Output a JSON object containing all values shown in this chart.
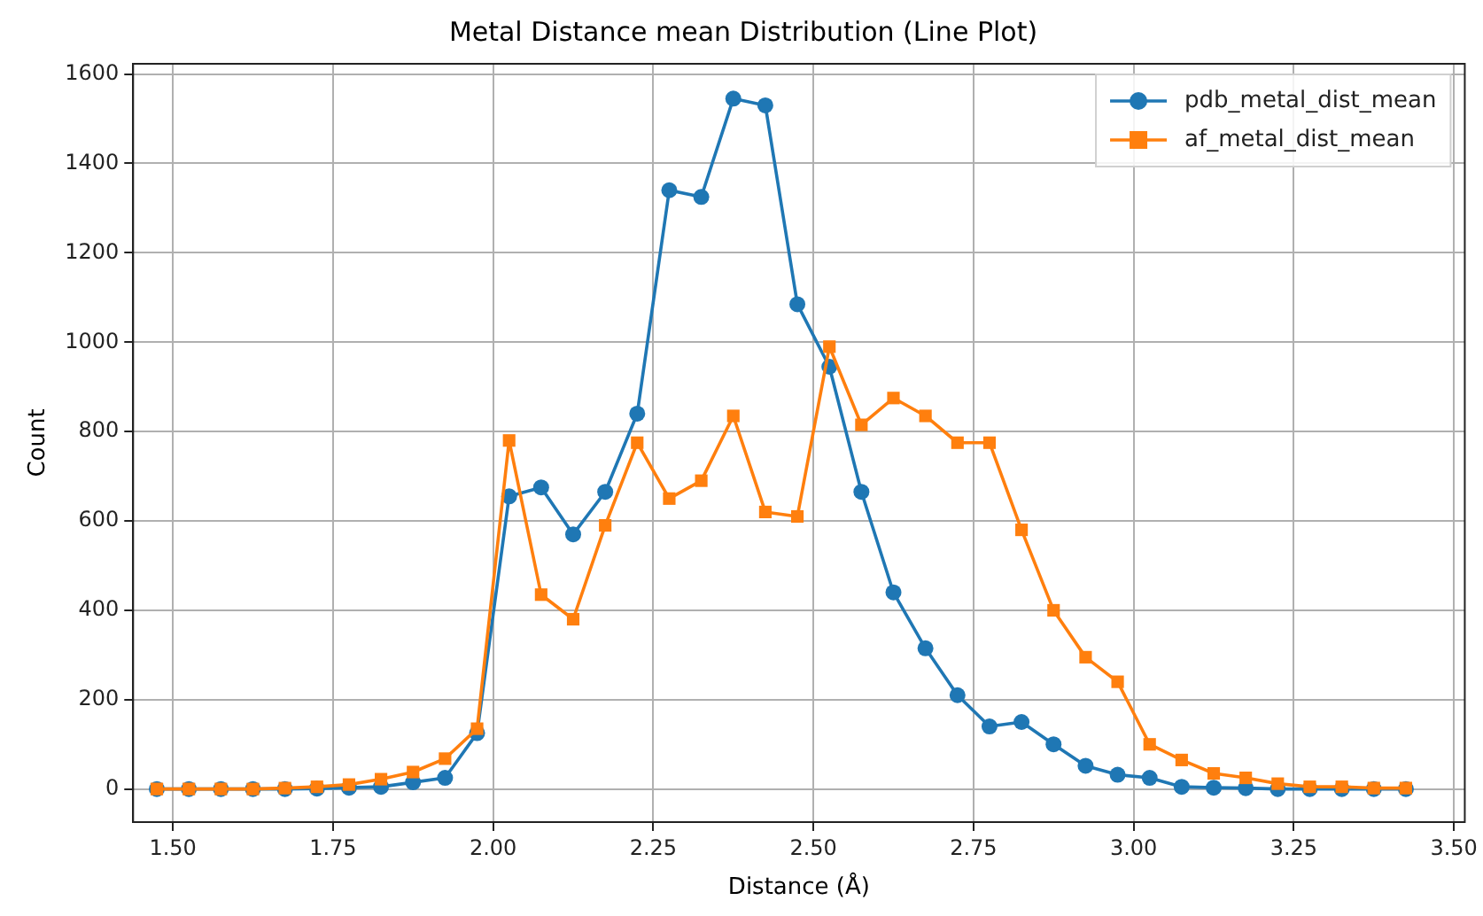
{
  "chart_data": {
    "type": "line",
    "title": "Metal Distance mean Distribution (Line Plot)",
    "xlabel": "Distance (Å)",
    "ylabel": "Count",
    "x": [
      1.475,
      1.525,
      1.575,
      1.625,
      1.675,
      1.725,
      1.775,
      1.825,
      1.875,
      1.925,
      1.975,
      2.025,
      2.075,
      2.125,
      2.175,
      2.225,
      2.275,
      2.325,
      2.375,
      2.425,
      2.475,
      2.525,
      2.575,
      2.625,
      2.675,
      2.725,
      2.775,
      2.825,
      2.875,
      2.925,
      2.975,
      3.025,
      3.075,
      3.125,
      3.175,
      3.225,
      3.275,
      3.325,
      3.375,
      3.425
    ],
    "series": [
      {
        "name": "pdb_metal_dist_mean",
        "color": "#1f77b4",
        "marker": "circle",
        "values": [
          0,
          0,
          0,
          0,
          0,
          1,
          3,
          5,
          15,
          25,
          125,
          655,
          675,
          570,
          665,
          840,
          1340,
          1325,
          1545,
          1530,
          1085,
          945,
          665,
          440,
          315,
          210,
          140,
          150,
          100,
          52,
          32,
          25,
          5,
          3,
          2,
          0,
          0,
          0,
          0,
          0
        ]
      },
      {
        "name": "af_metal_dist_mean",
        "color": "#ff7f0e",
        "marker": "square",
        "values": [
          0,
          0,
          0,
          0,
          2,
          5,
          10,
          22,
          38,
          68,
          135,
          780,
          435,
          380,
          590,
          775,
          650,
          690,
          835,
          620,
          610,
          990,
          815,
          875,
          835,
          775,
          775,
          580,
          400,
          295,
          240,
          100,
          65,
          35,
          25,
          12,
          5,
          5,
          2,
          2
        ]
      }
    ],
    "xlim": [
      1.438,
      3.517
    ],
    "xticks": [
      {
        "value": 1.5,
        "label": "1.50"
      },
      {
        "value": 1.75,
        "label": "1.75"
      },
      {
        "value": 2,
        "label": "2.00"
      },
      {
        "value": 2.25,
        "label": "2.25"
      },
      {
        "value": 2.5,
        "label": "2.50"
      },
      {
        "value": 2.75,
        "label": "2.75"
      },
      {
        "value": 3,
        "label": "3.00"
      },
      {
        "value": 3.25,
        "label": "3.25"
      },
      {
        "value": 3.5,
        "label": "3.50"
      }
    ],
    "ylim": [
      -74,
      1623
    ],
    "yticks": [
      0,
      200,
      400,
      600,
      800,
      1000,
      1200,
      1400,
      1600
    ],
    "grid": true,
    "legend": "top right",
    "line_style": "solid"
  }
}
